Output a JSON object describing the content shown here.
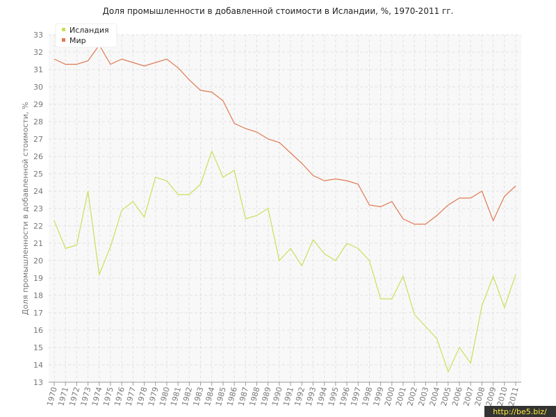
{
  "chart_data": {
    "type": "line",
    "title": "Доля промышленности в добавленной стоимости в Исландии, %, 1970-2011 гг.",
    "y_label": "Доля промышленности в добавленной стоимости, %",
    "categories": [
      "1970",
      "1971",
      "1972",
      "1973",
      "1974",
      "1975",
      "1976",
      "1977",
      "1978",
      "1979",
      "1980",
      "1981",
      "1982",
      "1983",
      "1984",
      "1985",
      "1986",
      "1987",
      "1988",
      "1989",
      "1990",
      "1991",
      "1992",
      "1993",
      "1994",
      "1995",
      "1996",
      "1997",
      "1998",
      "1999",
      "2000",
      "2001",
      "2002",
      "2003",
      "2004",
      "2005",
      "2006",
      "2007",
      "2008",
      "2009",
      "2010",
      "2011"
    ],
    "series": [
      {
        "name": "Исландия",
        "color": "#c8e05a",
        "values": [
          22.3,
          20.7,
          20.9,
          24.0,
          19.2,
          20.8,
          22.9,
          23.4,
          22.5,
          24.8,
          24.6,
          23.8,
          23.8,
          24.4,
          26.3,
          24.8,
          25.2,
          22.4,
          22.6,
          23.0,
          20.0,
          20.7,
          19.7,
          21.2,
          20.4,
          20.0,
          21.0,
          20.7,
          20.0,
          17.8,
          17.8,
          19.1,
          16.9,
          16.2,
          15.5,
          13.6,
          15.0,
          14.1,
          17.4,
          19.1,
          17.3,
          19.2
        ]
      },
      {
        "name": "Мир",
        "color": "#e07850",
        "values": [
          31.6,
          31.3,
          31.3,
          31.5,
          32.4,
          31.3,
          31.6,
          31.4,
          31.2,
          31.4,
          31.6,
          31.1,
          30.4,
          29.8,
          29.7,
          29.2,
          27.9,
          27.6,
          27.4,
          27.0,
          26.8,
          26.2,
          25.6,
          24.9,
          24.6,
          24.7,
          24.6,
          24.4,
          23.2,
          23.1,
          23.4,
          22.4,
          22.1,
          22.1,
          22.6,
          23.2,
          23.6,
          23.6,
          24.0,
          22.3,
          23.7,
          24.3
        ]
      }
    ],
    "ylim": [
      13,
      33
    ],
    "yticks": [
      13,
      14,
      15,
      16,
      17,
      18,
      19,
      20,
      21,
      22,
      23,
      24,
      25,
      26,
      27,
      28,
      29,
      30,
      31,
      32,
      33
    ],
    "grid": true,
    "legend": "top-left",
    "watermark": "http://be5.biz/"
  }
}
